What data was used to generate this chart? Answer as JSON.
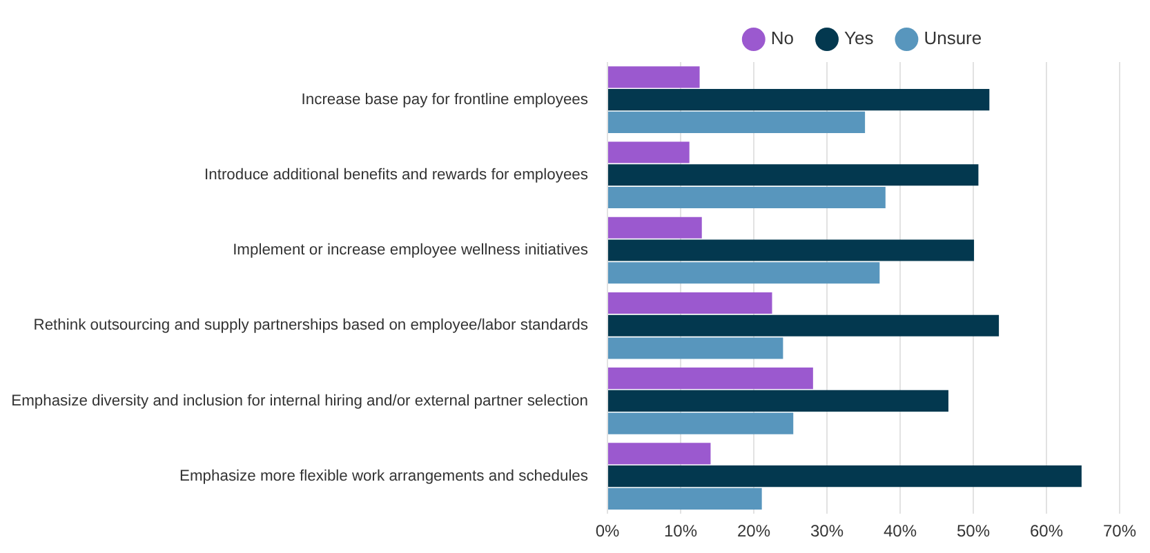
{
  "chart_data": {
    "type": "bar",
    "orientation": "horizontal",
    "categories": [
      "Increase base pay for frontline employees",
      "Introduce additional benefits and rewards for employees",
      "Implement or increase employee wellness initiatives",
      "Rethink outsourcing and supply partnerships based on employee/labor standards",
      "Emphasize diversity and inclusion for internal hiring and/or external partner selection",
      "Emphasize more flexible work arrangements and schedules"
    ],
    "series": [
      {
        "name": "No",
        "color": "#9b59cf",
        "values": [
          12.6,
          11.2,
          12.9,
          22.5,
          28.1,
          14.1
        ]
      },
      {
        "name": "Yes",
        "color": "#03384f",
        "values": [
          52.2,
          50.7,
          50.1,
          53.5,
          46.6,
          64.8
        ]
      },
      {
        "name": "Unsure",
        "color": "#5896bd",
        "values": [
          35.2,
          38.0,
          37.2,
          24.0,
          25.4,
          21.1
        ]
      }
    ],
    "xlim": [
      0,
      70
    ],
    "xticks": [
      {
        "value": 0,
        "label": "0%"
      },
      {
        "value": 10,
        "label": "10%"
      },
      {
        "value": 20,
        "label": "20%"
      },
      {
        "value": 30,
        "label": "30%"
      },
      {
        "value": 40,
        "label": "40%"
      },
      {
        "value": 50,
        "label": "50%"
      },
      {
        "value": 60,
        "label": "60%"
      },
      {
        "value": 70,
        "label": "70%"
      }
    ],
    "grid": "x",
    "legend": "top"
  }
}
